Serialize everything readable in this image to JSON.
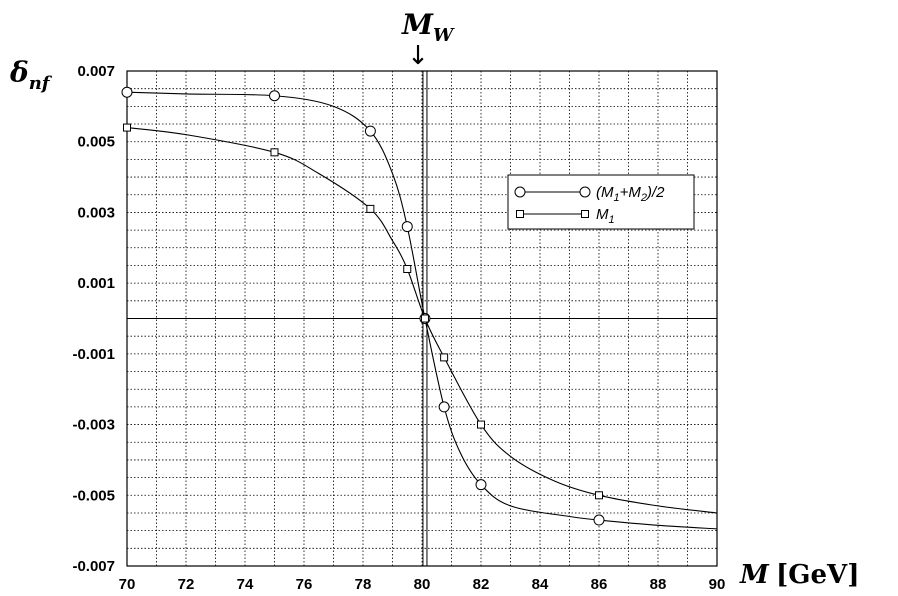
{
  "chart_data": {
    "type": "line",
    "xlim": [
      70,
      90
    ],
    "ylim": [
      -0.007,
      0.007
    ],
    "x_ticks": [
      "70",
      "72",
      "74",
      "76",
      "78",
      "80",
      "82",
      "84",
      "86",
      "88",
      "90"
    ],
    "y_ticks": [
      "0.007",
      "0.005",
      "0.003",
      "0.001",
      "-0.001",
      "-0.003",
      "-0.005",
      "-0.007"
    ],
    "grid": true,
    "legend_position": "right-middle",
    "ylabel": {
      "main": "δ",
      "sub": "nf"
    },
    "xlabel": {
      "main": "M",
      "unit": "[GeV]"
    },
    "annotation": {
      "main": "M",
      "sub": "W",
      "arrow": "↓",
      "x": 80.1
    },
    "series": [
      {
        "legend": {
          "a": "(M",
          "a_sub": "1",
          "b": "+M",
          "b_sub": "2",
          "c": ")/2"
        },
        "marker": "circle",
        "points": [
          [
            70,
            0.0064
          ],
          [
            75,
            0.0063
          ],
          [
            78.25,
            0.0053
          ],
          [
            79.5,
            0.0026
          ],
          [
            80.1,
            0.0
          ],
          [
            80.75,
            -0.0025
          ],
          [
            82,
            -0.0047
          ],
          [
            86,
            -0.0057
          ]
        ],
        "curve": [
          [
            70,
            0.0064
          ],
          [
            72,
            0.00635
          ],
          [
            75,
            0.0063
          ],
          [
            77,
            0.006
          ],
          [
            78.25,
            0.0053
          ],
          [
            79,
            0.0041
          ],
          [
            79.5,
            0.0026
          ],
          [
            80.1,
            0.0
          ],
          [
            80.75,
            -0.0025
          ],
          [
            81.3,
            -0.0038
          ],
          [
            82,
            -0.0047
          ],
          [
            83,
            -0.0053
          ],
          [
            85,
            -0.0056
          ],
          [
            86,
            -0.0057
          ],
          [
            88,
            -0.00585
          ],
          [
            90,
            -0.00595
          ]
        ]
      },
      {
        "legend": {
          "a": "M",
          "a_sub": "1",
          "b": "",
          "b_sub": "",
          "c": ""
        },
        "marker": "square",
        "points": [
          [
            70,
            0.0054
          ],
          [
            75,
            0.0047
          ],
          [
            78.25,
            0.0031
          ],
          [
            79.5,
            0.0014
          ],
          [
            80.1,
            0.0
          ],
          [
            80.75,
            -0.0011
          ],
          [
            82,
            -0.003
          ],
          [
            86,
            -0.005
          ]
        ],
        "curve": [
          [
            70,
            0.0054
          ],
          [
            72,
            0.0052
          ],
          [
            75,
            0.0047
          ],
          [
            76.5,
            0.0041
          ],
          [
            78.25,
            0.0031
          ],
          [
            79,
            0.0022
          ],
          [
            79.5,
            0.0014
          ],
          [
            80.1,
            0.0
          ],
          [
            80.75,
            -0.0011
          ],
          [
            82,
            -0.003
          ],
          [
            83,
            -0.0039
          ],
          [
            84.5,
            -0.0046
          ],
          [
            86,
            -0.005
          ],
          [
            88,
            -0.0053
          ],
          [
            90,
            -0.0055
          ]
        ]
      }
    ]
  }
}
